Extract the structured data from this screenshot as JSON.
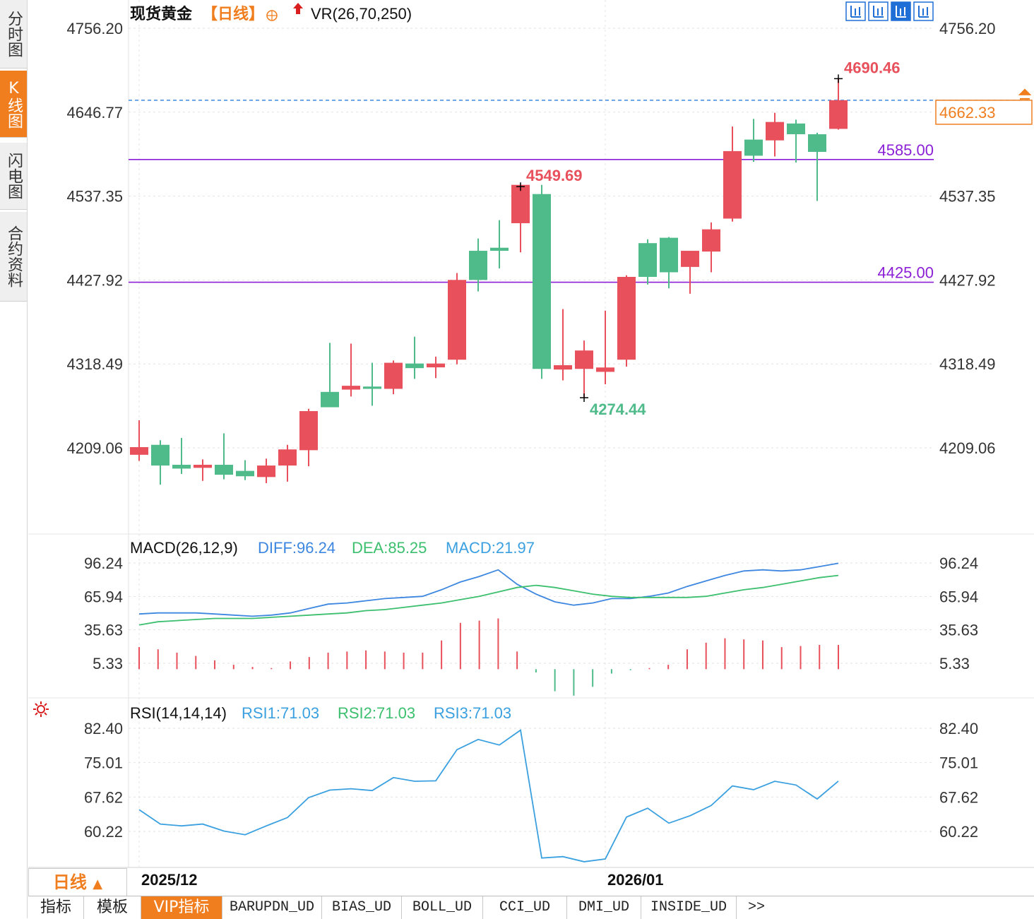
{
  "sidebar": {
    "tabs": [
      {
        "label": "分时图",
        "active": false
      },
      {
        "label": "K线图",
        "active": true
      },
      {
        "label": "闪电图",
        "active": false
      },
      {
        "label": "合约资料",
        "active": false
      }
    ]
  },
  "header": {
    "symbol": "现货黄金",
    "period_tag": "【日线】",
    "indicator": "VR(26,70,250)",
    "toolbar_icons": [
      "crosshair-icon",
      "bar-icon",
      "chart-type-icon",
      "exit-right-icon"
    ]
  },
  "colors": {
    "up": "#e8505b",
    "down": "#4fbb8a",
    "support_line": "#8b1fd6",
    "current_price": "#f07d1e",
    "diff": "#3d87e0",
    "dea": "#3cbf6e",
    "rsi": "#3aa0e0"
  },
  "chart_data": [
    {
      "type": "candlestick",
      "title": "现货黄金【日线】",
      "y_ticks": [
        "4756.20",
        "4646.77",
        "4537.35",
        "4427.92",
        "4318.49",
        "4209.06"
      ],
      "ylim": [
        4100,
        4756.2
      ],
      "x_labels": [
        "2025/12",
        "2026/01"
      ],
      "x_label_index": [
        0,
        22
      ],
      "current_price": "4662.33",
      "price_lines": [
        {
          "value": 4585.0,
          "label": "4585.00"
        },
        {
          "value": 4425.0,
          "label": "4425.00"
        }
      ],
      "annotations": [
        {
          "label": "4549.69",
          "index": 18,
          "value": 4549.69,
          "kind": "high"
        },
        {
          "label": "4274.44",
          "index": 21,
          "value": 4274.44,
          "kind": "low"
        },
        {
          "label": "4690.46",
          "index": 33,
          "value": 4690.46,
          "kind": "high"
        }
      ],
      "candles": [
        {
          "o": 4200,
          "h": 4245,
          "l": 4192,
          "c": 4210
        },
        {
          "o": 4213,
          "h": 4219,
          "l": 4161,
          "c": 4186
        },
        {
          "o": 4187,
          "h": 4222,
          "l": 4175,
          "c": 4182
        },
        {
          "o": 4183,
          "h": 4194,
          "l": 4166,
          "c": 4187
        },
        {
          "o": 4187,
          "h": 4228,
          "l": 4168,
          "c": 4174
        },
        {
          "o": 4179,
          "h": 4193,
          "l": 4167,
          "c": 4172
        },
        {
          "o": 4171,
          "h": 4195,
          "l": 4163,
          "c": 4186
        },
        {
          "o": 4186,
          "h": 4213,
          "l": 4165,
          "c": 4207
        },
        {
          "o": 4206,
          "h": 4260,
          "l": 4185,
          "c": 4257
        },
        {
          "o": 4282,
          "h": 4346,
          "l": 4264,
          "c": 4262
        },
        {
          "o": 4285,
          "h": 4345,
          "l": 4276,
          "c": 4290
        },
        {
          "o": 4289,
          "h": 4320,
          "l": 4264,
          "c": 4286
        },
        {
          "o": 4286,
          "h": 4323,
          "l": 4279,
          "c": 4320
        },
        {
          "o": 4319,
          "h": 4354,
          "l": 4299,
          "c": 4313
        },
        {
          "o": 4314,
          "h": 4328,
          "l": 4300,
          "c": 4319
        },
        {
          "o": 4324,
          "h": 4437,
          "l": 4318,
          "c": 4428
        },
        {
          "o": 4466,
          "h": 4482,
          "l": 4413,
          "c": 4428
        },
        {
          "o": 4470,
          "h": 4506,
          "l": 4443,
          "c": 4466
        },
        {
          "o": 4502,
          "h": 4549.69,
          "l": 4464,
          "c": 4552
        },
        {
          "o": 4540,
          "h": 4552,
          "l": 4299,
          "c": 4312
        },
        {
          "o": 4313,
          "h": 4390,
          "l": 4297,
          "c": 4315
        },
        {
          "o": 4312,
          "h": 4349,
          "l": 4274.44,
          "c": 4336
        },
        {
          "o": 4310,
          "h": 4388,
          "l": 4292,
          "c": 4312
        },
        {
          "o": 4324,
          "h": 4434,
          "l": 4315,
          "c": 4432
        },
        {
          "o": 4476,
          "h": 4481,
          "l": 4422,
          "c": 4432
        },
        {
          "o": 4483,
          "h": 4484,
          "l": 4417,
          "c": 4438
        },
        {
          "o": 4445,
          "h": 4463,
          "l": 4410,
          "c": 4466
        },
        {
          "o": 4465,
          "h": 4503,
          "l": 4438,
          "c": 4494
        },
        {
          "o": 4508,
          "h": 4628,
          "l": 4504,
          "c": 4596
        },
        {
          "o": 4611,
          "h": 4638,
          "l": 4582,
          "c": 4590
        },
        {
          "o": 4610,
          "h": 4646,
          "l": 4589,
          "c": 4634
        },
        {
          "o": 4632,
          "h": 4637,
          "l": 4581,
          "c": 4618
        },
        {
          "o": 4618,
          "h": 4620,
          "l": 4531,
          "c": 4595
        },
        {
          "o": 4625,
          "h": 4690.46,
          "l": 4624,
          "c": 4662.33
        }
      ]
    },
    {
      "type": "line",
      "title": "MACD(26,12,9)",
      "legend": [
        {
          "label": "DIFF:96.24",
          "color": "#3d87e0"
        },
        {
          "label": "DEA:85.25",
          "color": "#3cbf6e"
        },
        {
          "label": "MACD:21.97",
          "color": "#3aa0e0"
        }
      ],
      "y_ticks": [
        "96.24",
        "65.94",
        "35.63",
        "5.33"
      ],
      "ylim": [
        -20,
        111.4
      ],
      "series": [
        {
          "name": "DIFF",
          "values": [
            50,
            51,
            51,
            51,
            50,
            49,
            48,
            49,
            51,
            55,
            59,
            60,
            62,
            64,
            65,
            66,
            72,
            79,
            84,
            90,
            77,
            68,
            61,
            58,
            60,
            64,
            64,
            66,
            69,
            75,
            80,
            85,
            89,
            90,
            89,
            90,
            93,
            96
          ]
        },
        {
          "name": "DEA",
          "values": [
            40,
            43,
            44,
            45,
            46,
            46,
            46,
            47,
            48,
            49,
            50,
            51,
            53,
            54,
            56,
            58,
            60,
            63,
            66,
            70,
            74,
            76,
            74,
            71,
            68,
            66,
            65,
            65,
            65,
            65,
            66,
            69,
            72,
            74,
            77,
            80,
            83,
            85
          ]
        },
        {
          "name": "MACD",
          "values": [
            20,
            18,
            15,
            12,
            8,
            4,
            2,
            1,
            7,
            11,
            15,
            16,
            17,
            16,
            15,
            15,
            26,
            42,
            44,
            46,
            16,
            -3,
            -20,
            -24,
            -16,
            -4,
            -1,
            1,
            4,
            18,
            24,
            28,
            27,
            26,
            20,
            21,
            22,
            22
          ]
        }
      ]
    },
    {
      "type": "line",
      "title": "RSI(14,14,14)",
      "legend": [
        {
          "label": "RSI1:71.03",
          "color": "#3aa0e0"
        },
        {
          "label": "RSI2:71.03",
          "color": "#3cbf6e"
        },
        {
          "label": "RSI3:71.03",
          "color": "#3aa0e0"
        }
      ],
      "y_ticks": [
        "82.40",
        "75.01",
        "67.62",
        "60.22"
      ],
      "ylim": [
        52,
        82.4
      ],
      "series": [
        {
          "name": "RSI",
          "values": [
            64.9,
            61.8,
            61.4,
            61.8,
            60.3,
            59.5,
            61.4,
            63.2,
            67.5,
            69.1,
            69.4,
            69.0,
            71.8,
            71.0,
            71.1,
            77.8,
            80.0,
            78.8,
            82.0,
            54.5,
            54.8,
            53.7,
            54.3,
            63.3,
            65.2,
            62.0,
            63.6,
            65.8,
            70.0,
            69.2,
            71.0,
            70.2,
            67.2,
            71.03
          ]
        }
      ]
    }
  ],
  "bottom": {
    "period_label": "日线",
    "period_arrow": "▲",
    "tabs": [
      {
        "label": "指标",
        "active": false
      },
      {
        "label": "模板",
        "active": false
      },
      {
        "label": "VIP指标",
        "active": true
      },
      {
        "label": "BARUPDN_UD",
        "active": false
      },
      {
        "label": "BIAS_UD",
        "active": false
      },
      {
        "label": "BOLL_UD",
        "active": false
      },
      {
        "label": "CCI_UD",
        "active": false
      },
      {
        "label": "DMI_UD",
        "active": false
      },
      {
        "label": "INSIDE_UD",
        "active": false
      },
      {
        "label": ">>",
        "active": false
      }
    ]
  }
}
